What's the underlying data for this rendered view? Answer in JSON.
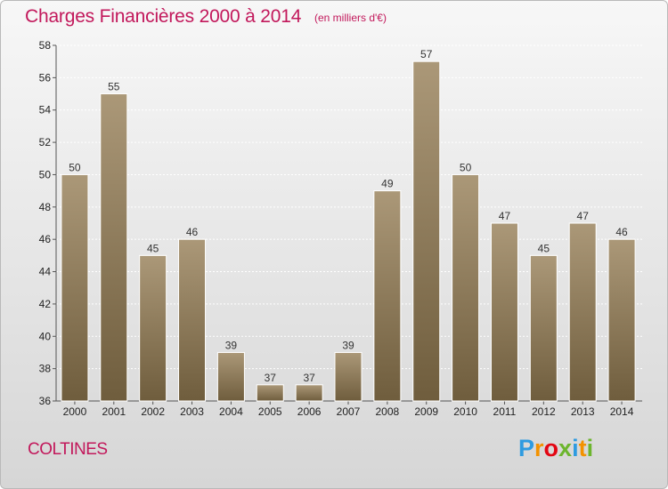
{
  "title": "Charges Financières 2000 à 2014",
  "subtitle": "(en milliers d'€)",
  "commune": "COLTINES",
  "logo": {
    "letters": [
      "P",
      "r",
      "o",
      "x",
      "i",
      "t",
      "i"
    ],
    "colors": [
      "#2e9be0",
      "#f39200",
      "#e30613",
      "#6cb52d",
      "#2e9be0",
      "#f39200",
      "#6cb52d"
    ]
  },
  "colors": {
    "accent": "#c2185b",
    "bar_top": "#ab9878",
    "bar_bottom": "#6f5d3d"
  },
  "chart_data": {
    "type": "bar",
    "categories": [
      "2000",
      "2001",
      "2002",
      "2003",
      "2004",
      "2005",
      "2006",
      "2007",
      "2008",
      "2009",
      "2010",
      "2011",
      "2012",
      "2013",
      "2014"
    ],
    "values": [
      50,
      55,
      45,
      46,
      39,
      37,
      37,
      39,
      49,
      57,
      50,
      47,
      45,
      47,
      46
    ],
    "ylim": [
      36,
      58
    ],
    "yticks": [
      36,
      38,
      40,
      42,
      44,
      46,
      48,
      50,
      52,
      54,
      56,
      58
    ],
    "grid": true,
    "xlabel": "",
    "ylabel": ""
  }
}
